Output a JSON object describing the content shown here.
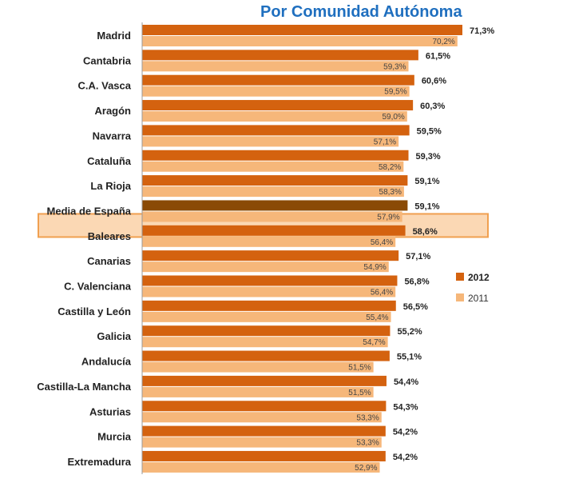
{
  "chart_data": {
    "type": "bar",
    "orientation": "horizontal",
    "title": "Por Comunidad Autónoma",
    "categories": [
      "Madrid",
      "Cantabria",
      "C.A. Vasca",
      "Aragón",
      "Navarra",
      "Cataluña",
      "La Rioja",
      "Media de España",
      "Baleares",
      "Canarias",
      "C. Valenciana",
      "Castilla y León",
      "Galicia",
      "Andalucía",
      "Castilla-La Mancha",
      "Asturias",
      "Murcia",
      "Extremadura"
    ],
    "highlight_category": "Media de España",
    "series": [
      {
        "name": "2012",
        "values": [
          71.3,
          61.5,
          60.6,
          60.3,
          59.5,
          59.3,
          59.1,
          59.1,
          58.6,
          57.1,
          56.8,
          56.5,
          55.2,
          55.1,
          54.4,
          54.3,
          54.2,
          54.2
        ],
        "labels": [
          "71,3%",
          "61,5%",
          "60,6%",
          "60,3%",
          "59,5%",
          "59,3%",
          "59,1%",
          "59,1%",
          "58,6%",
          "57,1%",
          "56,8%",
          "56,5%",
          "55,2%",
          "55,1%",
          "54,4%",
          "54,3%",
          "54,2%",
          "54,2%"
        ]
      },
      {
        "name": "2011",
        "values": [
          70.2,
          59.3,
          59.5,
          59.0,
          57.1,
          58.2,
          58.3,
          57.9,
          56.4,
          54.9,
          56.4,
          55.4,
          54.7,
          51.5,
          51.5,
          53.3,
          53.3,
          52.9
        ],
        "labels": [
          "70,2%",
          "59,3%",
          "59,5%",
          "59,0%",
          "57,1%",
          "58,2%",
          "58,3%",
          "57,9%",
          "56,4%",
          "54,9%",
          "56,4%",
          "55,4%",
          "54,7%",
          "51,5%",
          "51,5%",
          "53,3%",
          "53,3%",
          "52,9%"
        ]
      }
    ],
    "xlim": [
      0,
      71.3
    ],
    "grid": false,
    "legend_position": "right",
    "colors": {
      "series_2012": "#d4620f",
      "series_2011": "#f6b77a",
      "highlight_2012": "#8a4a06",
      "highlight_band": "#fbd8b4",
      "highlight_border": "#f0a050",
      "axis": "#999999",
      "title": "#1f6fbf"
    }
  }
}
